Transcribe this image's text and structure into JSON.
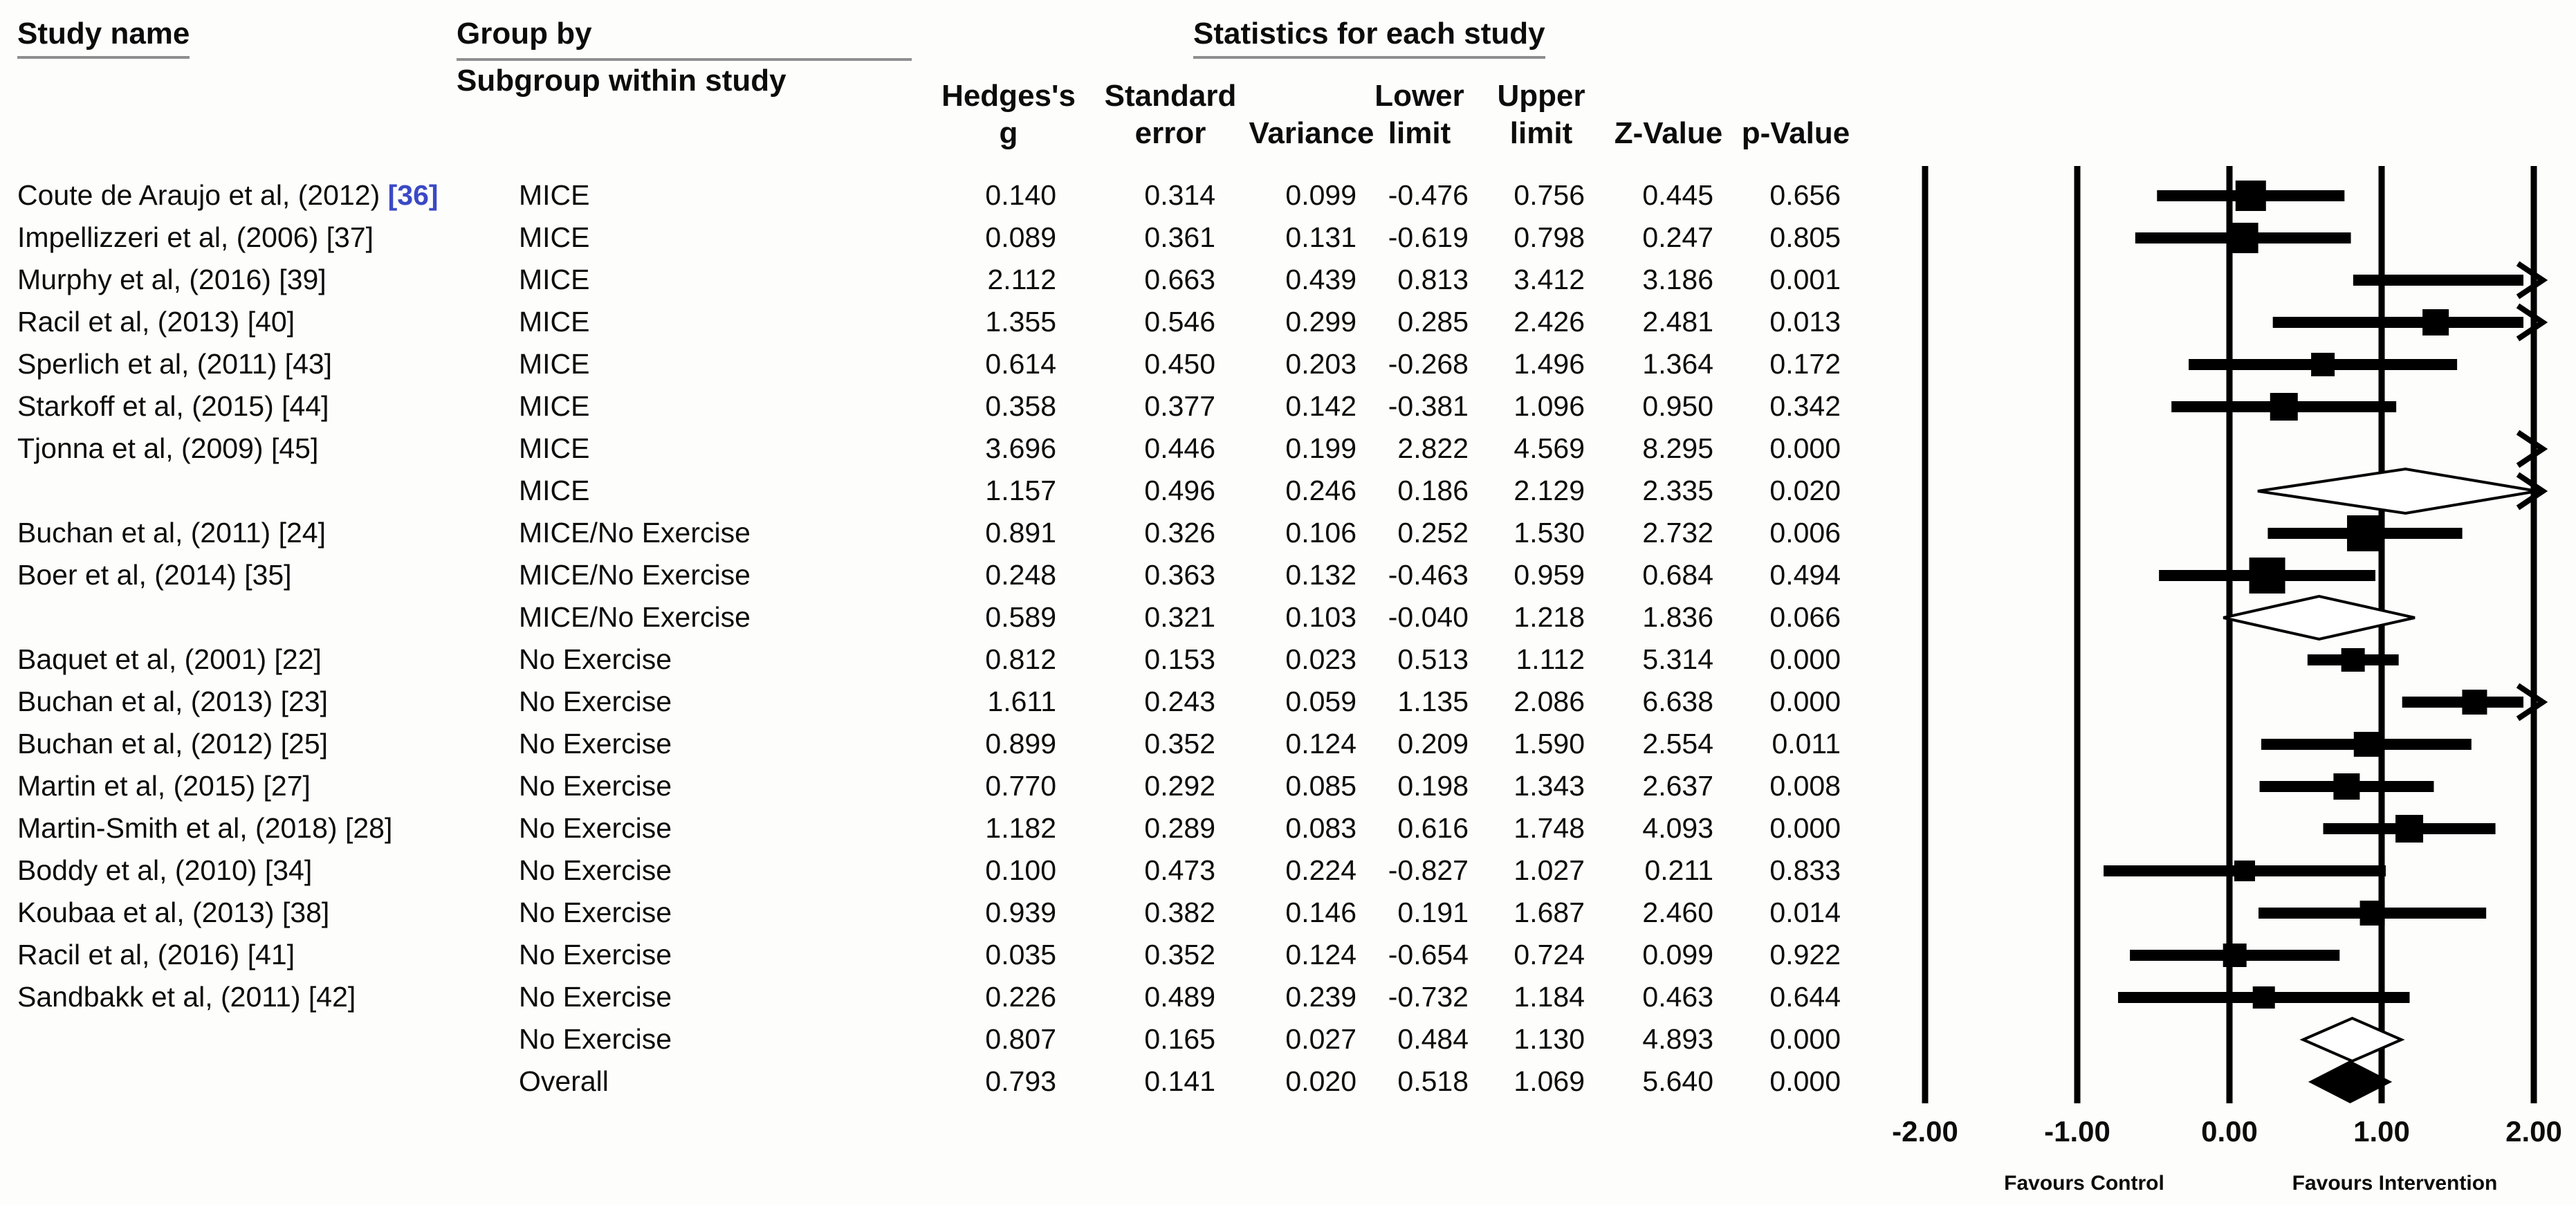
{
  "header": {
    "study_name": "Study name",
    "group_by": "Group by",
    "subgroup_within_study": "Subgroup within study",
    "statistics_title": "Statistics for each study",
    "columns": [
      {
        "line1": "Hedges's",
        "line2": "g"
      },
      {
        "line1": "Standard",
        "line2": "error"
      },
      {
        "line1": "",
        "line2": "Variance"
      },
      {
        "line1": "Lower",
        "line2": "limit"
      },
      {
        "line1": "Upper",
        "line2": "limit"
      },
      {
        "line1": "",
        "line2": "Z-Value"
      },
      {
        "line1": "",
        "line2": "p-Value"
      }
    ]
  },
  "colors": {
    "ink": "#000000",
    "link_ref": "#3b49c4",
    "rule_gray": "#8f8f8f"
  },
  "chart_data": {
    "type": "forest",
    "title": "Statistics for each study",
    "effect_measure": "Hedges's g",
    "x_axis": {
      "min": -2,
      "max": 2,
      "tick_values": [
        -2,
        -1,
        0,
        1,
        2
      ],
      "tick_labels": [
        "-2.00",
        "-1.00",
        "0.00",
        "1.00",
        "2.00"
      ]
    },
    "footer": {
      "left": "Favours Control",
      "right": "Favours Intervention"
    },
    "rows": [
      {
        "study": "Coute de Araujo et al, (2012)",
        "ref": "[36]",
        "ref_highlighted": true,
        "group": "MICE",
        "stats": [
          "0.140",
          "0.314",
          "0.099",
          "-0.476",
          "0.756",
          "0.445",
          "0.656"
        ],
        "effect": 0.14,
        "lower": -0.476,
        "upper": 0.756,
        "shape": "square",
        "size": 44
      },
      {
        "study": "Impellizzeri et al, (2006)",
        "ref": "[37]",
        "ref_highlighted": false,
        "group": "MICE",
        "stats": [
          "0.089",
          "0.361",
          "0.131",
          "-0.619",
          "0.798",
          "0.247",
          "0.805"
        ],
        "effect": 0.089,
        "lower": -0.619,
        "upper": 0.798,
        "shape": "square",
        "size": 44
      },
      {
        "study": "Murphy et al, (2016)",
        "ref": "[39]",
        "ref_highlighted": false,
        "group": "MICE",
        "stats": [
          "2.112",
          "0.663",
          "0.439",
          "0.813",
          "3.412",
          "3.186",
          "0.001"
        ],
        "effect": 2.112,
        "lower": 0.813,
        "upper": 3.412,
        "shape": "square",
        "size": 34
      },
      {
        "study": "Racil et al, (2013)",
        "ref": "[40]",
        "ref_highlighted": false,
        "group": "MICE",
        "stats": [
          "1.355",
          "0.546",
          "0.299",
          "0.285",
          "2.426",
          "2.481",
          "0.013"
        ],
        "effect": 1.355,
        "lower": 0.285,
        "upper": 2.426,
        "shape": "square",
        "size": 38
      },
      {
        "study": "Sperlich et al, (2011)",
        "ref": "[43]",
        "ref_highlighted": false,
        "group": "MICE",
        "stats": [
          "0.614",
          "0.450",
          "0.203",
          "-0.268",
          "1.496",
          "1.364",
          "0.172"
        ],
        "effect": 0.614,
        "lower": -0.268,
        "upper": 1.496,
        "shape": "square",
        "size": 34
      },
      {
        "study": "Starkoff et al, (2015)",
        "ref": "[44]",
        "ref_highlighted": false,
        "group": "MICE",
        "stats": [
          "0.358",
          "0.377",
          "0.142",
          "-0.381",
          "1.096",
          "0.950",
          "0.342"
        ],
        "effect": 0.358,
        "lower": -0.381,
        "upper": 1.096,
        "shape": "square",
        "size": 40
      },
      {
        "study": "Tjonna et al, (2009)",
        "ref": "[45]",
        "ref_highlighted": false,
        "group": "MICE",
        "stats": [
          "3.696",
          "0.446",
          "0.199",
          "2.822",
          "4.569",
          "8.295",
          "0.000"
        ],
        "effect": 3.696,
        "lower": 2.822,
        "upper": 4.569,
        "shape": "square",
        "size": 36
      },
      {
        "study": "",
        "ref": "",
        "ref_highlighted": false,
        "group": "MICE",
        "stats": [
          "1.157",
          "0.496",
          "0.246",
          "0.186",
          "2.129",
          "2.335",
          "0.020"
        ],
        "effect": 1.157,
        "lower": 0.186,
        "upper": 2.129,
        "shape": "diamond",
        "size": 64
      },
      {
        "study": "Buchan et al, (2011)",
        "ref": "[24]",
        "ref_highlighted": false,
        "group": "MICE/No Exercise",
        "stats": [
          "0.891",
          "0.326",
          "0.106",
          "0.252",
          "1.530",
          "2.732",
          "0.006"
        ],
        "effect": 0.891,
        "lower": 0.252,
        "upper": 1.53,
        "shape": "square",
        "size": 52
      },
      {
        "study": "Boer et al, (2014)",
        "ref": "[35]",
        "ref_highlighted": false,
        "group": "MICE/No Exercise",
        "stats": [
          "0.248",
          "0.363",
          "0.132",
          "-0.463",
          "0.959",
          "0.684",
          "0.494"
        ],
        "effect": 0.248,
        "lower": -0.463,
        "upper": 0.959,
        "shape": "square",
        "size": 52
      },
      {
        "study": "",
        "ref": "",
        "ref_highlighted": false,
        "group": "MICE/No Exercise",
        "stats": [
          "0.589",
          "0.321",
          "0.103",
          "-0.040",
          "1.218",
          "1.836",
          "0.066"
        ],
        "effect": 0.589,
        "lower": -0.04,
        "upper": 1.218,
        "shape": "diamond",
        "size": 62
      },
      {
        "study": "Baquet et al, (2001)",
        "ref": "[22]",
        "ref_highlighted": false,
        "group": "No Exercise",
        "stats": [
          "0.812",
          "0.153",
          "0.023",
          "0.513",
          "1.112",
          "5.314",
          "0.000"
        ],
        "effect": 0.812,
        "lower": 0.513,
        "upper": 1.112,
        "shape": "square",
        "size": 34
      },
      {
        "study": "Buchan et al, (2013)",
        "ref": "[23]",
        "ref_highlighted": false,
        "group": "No Exercise",
        "stats": [
          "1.611",
          "0.243",
          "0.059",
          "1.135",
          "2.086",
          "6.638",
          "0.000"
        ],
        "effect": 1.611,
        "lower": 1.135,
        "upper": 2.086,
        "shape": "square",
        "size": 36
      },
      {
        "study": "Buchan et al, (2012)",
        "ref": "[25]",
        "ref_highlighted": false,
        "group": "No Exercise",
        "stats": [
          "0.899",
          "0.352",
          "0.124",
          "0.209",
          "1.590",
          "2.554",
          "0.011"
        ],
        "effect": 0.899,
        "lower": 0.209,
        "upper": 1.59,
        "shape": "square",
        "size": 36
      },
      {
        "study": "Martin et al, (2015)",
        "ref": "[27]",
        "ref_highlighted": false,
        "group": "No Exercise",
        "stats": [
          "0.770",
          "0.292",
          "0.085",
          "0.198",
          "1.343",
          "2.637",
          "0.008"
        ],
        "effect": 0.77,
        "lower": 0.198,
        "upper": 1.343,
        "shape": "square",
        "size": 38
      },
      {
        "study": "Martin-Smith et al, (2018)",
        "ref": "[28]",
        "ref_highlighted": false,
        "group": "No Exercise",
        "stats": [
          "1.182",
          "0.289",
          "0.083",
          "0.616",
          "1.748",
          "4.093",
          "0.000"
        ],
        "effect": 1.182,
        "lower": 0.616,
        "upper": 1.748,
        "shape": "square",
        "size": 40
      },
      {
        "study": "Boddy et al, (2010)",
        "ref": "[34]",
        "ref_highlighted": false,
        "group": "No Exercise",
        "stats": [
          "0.100",
          "0.473",
          "0.224",
          "-0.827",
          "1.027",
          "0.211",
          "0.833"
        ],
        "effect": 0.1,
        "lower": -0.827,
        "upper": 1.027,
        "shape": "square",
        "size": 30
      },
      {
        "study": "Koubaa et al, (2013)",
        "ref": "[38]",
        "ref_highlighted": false,
        "group": "No Exercise",
        "stats": [
          "0.939",
          "0.382",
          "0.146",
          "0.191",
          "1.687",
          "2.460",
          "0.014"
        ],
        "effect": 0.939,
        "lower": 0.191,
        "upper": 1.687,
        "shape": "square",
        "size": 36
      },
      {
        "study": "Racil et al, (2016)",
        "ref": "[41]",
        "ref_highlighted": false,
        "group": "No Exercise",
        "stats": [
          "0.035",
          "0.352",
          "0.124",
          "-0.654",
          "0.724",
          "0.099",
          "0.922"
        ],
        "effect": 0.035,
        "lower": -0.654,
        "upper": 0.724,
        "shape": "square",
        "size": 34
      },
      {
        "study": "Sandbakk et al, (2011)",
        "ref": "[42]",
        "ref_highlighted": false,
        "group": "No Exercise",
        "stats": [
          "0.226",
          "0.489",
          "0.239",
          "-0.732",
          "1.184",
          "0.463",
          "0.644"
        ],
        "effect": 0.226,
        "lower": -0.732,
        "upper": 1.184,
        "shape": "square",
        "size": 32
      },
      {
        "study": "",
        "ref": "",
        "ref_highlighted": false,
        "group": "No Exercise",
        "stats": [
          "0.807",
          "0.165",
          "0.027",
          "0.484",
          "1.130",
          "4.893",
          "0.000"
        ],
        "effect": 0.807,
        "lower": 0.484,
        "upper": 1.13,
        "shape": "diamond",
        "size": 62
      },
      {
        "study": "",
        "ref": "",
        "ref_highlighted": false,
        "group": "Overall",
        "stats": [
          "0.793",
          "0.141",
          "0.020",
          "0.518",
          "1.069",
          "5.640",
          "0.000"
        ],
        "effect": 0.793,
        "lower": 0.518,
        "upper": 1.069,
        "shape": "filled-diamond",
        "size": 62
      }
    ]
  }
}
